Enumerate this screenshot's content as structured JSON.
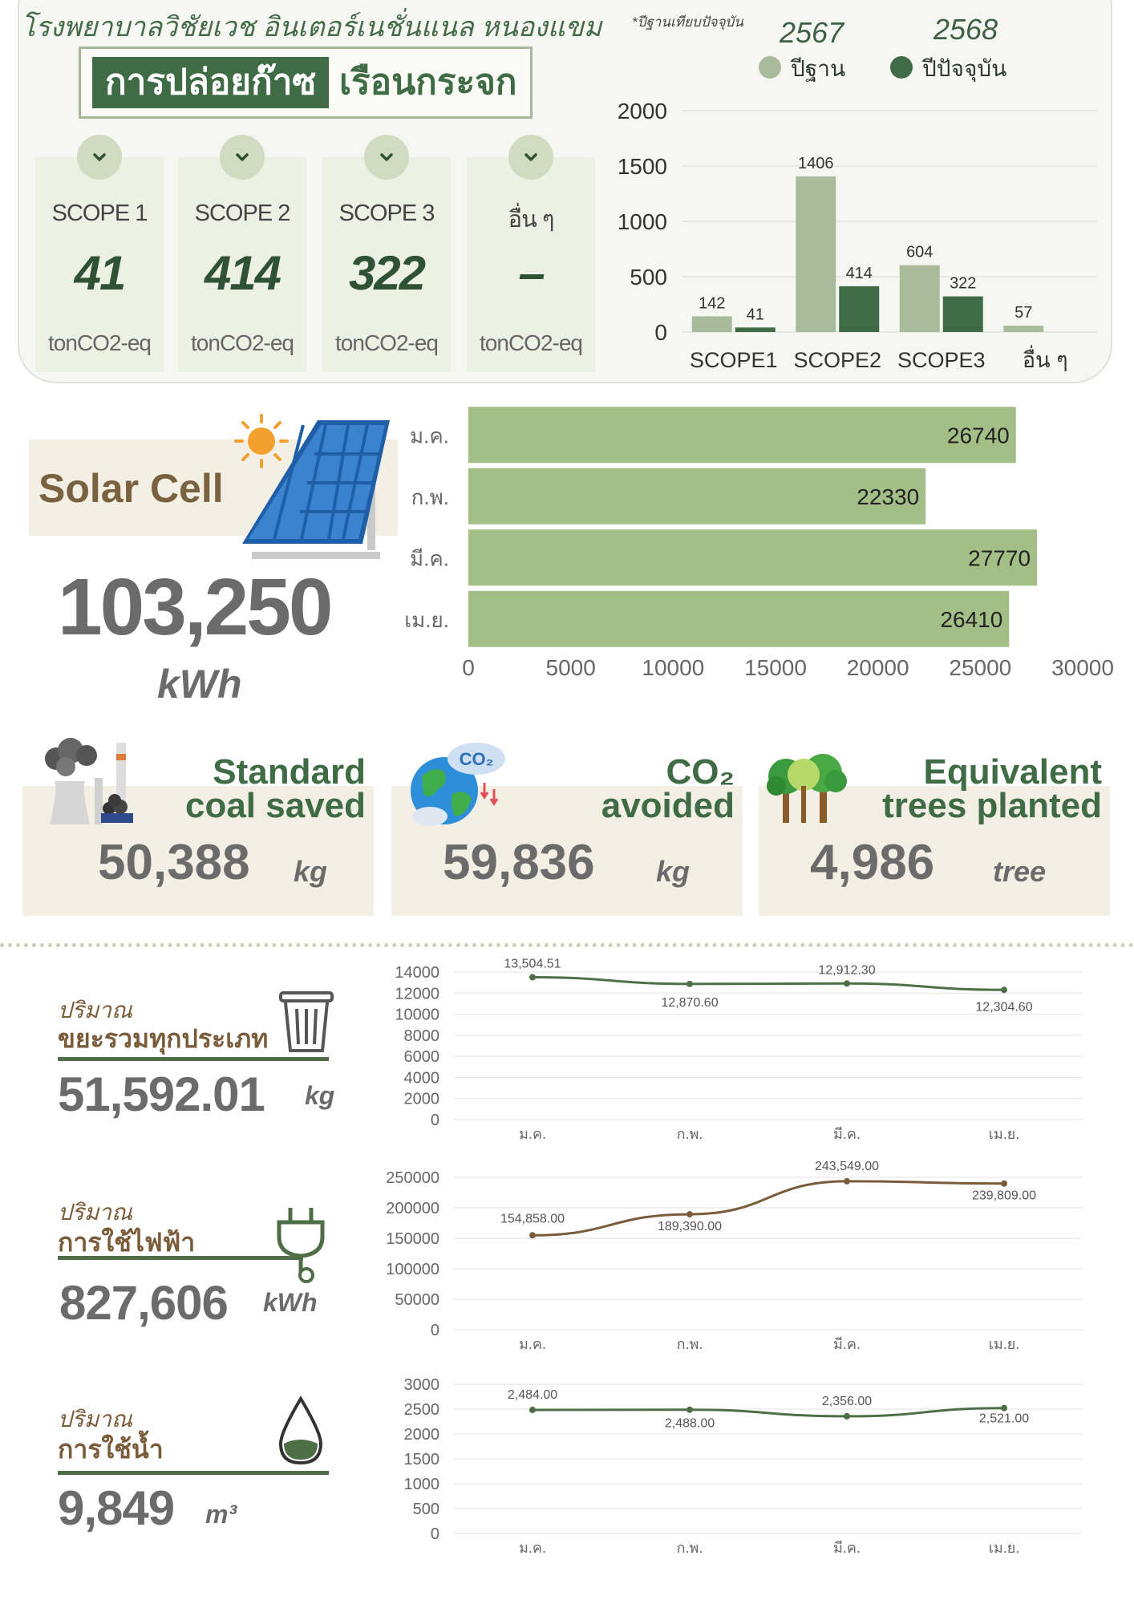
{
  "header": {
    "hospital_name": "โรงพยาบาลวิชัยเวช อินเตอร์เนชั่นแนล หนองแขม",
    "footnote": "*ปีฐานเทียบปัจจุบัน",
    "base_year": "2567",
    "current_year": "2568",
    "legend_base": "ปีฐาน",
    "legend_current": "ปีปัจจุบัน"
  },
  "ghg_title": {
    "part1": "การปล่อยก๊าซ",
    "part2": "เรือนกระจก"
  },
  "scopes": [
    {
      "name": "SCOPE 1",
      "value": "41",
      "unit": "tonCO2-eq"
    },
    {
      "name": "SCOPE 2",
      "value": "414",
      "unit": "tonCO2-eq"
    },
    {
      "name": "SCOPE 3",
      "value": "322",
      "unit": "tonCO2-eq"
    },
    {
      "name": "อื่น ๆ",
      "value": "–",
      "unit": "tonCO2-eq"
    }
  ],
  "solar": {
    "title": "Solar Cell",
    "total": "103,250",
    "unit": "kWh"
  },
  "stats": {
    "coal": {
      "title_line1": "Standard",
      "title_line2": "coal saved",
      "value": "50,388",
      "unit": "kg"
    },
    "co2": {
      "title_line1": "CO₂",
      "title_line2": "avoided",
      "value": "59,836",
      "unit": "kg"
    },
    "trees": {
      "title_line1": "Equivalent",
      "title_line2": "trees planted",
      "value": "4,986",
      "unit": "tree"
    }
  },
  "metrics": {
    "waste": {
      "prefix": "ปริมาณ",
      "label": "ขยะรวมทุกประเภท",
      "value": "51,592.01",
      "unit": "kg"
    },
    "electricity": {
      "prefix": "ปริมาณ",
      "label": "การใช้ไฟฟ้า",
      "value": "827,606",
      "unit": "kWh"
    },
    "water": {
      "prefix": "ปริมาณ",
      "label": "การใช้น้ำ",
      "value": "9,849",
      "unit": "m³"
    }
  },
  "colors": {
    "base_bar": "#a9bb9b",
    "current_bar": "#3f6b45",
    "solar_bar": "#a3bf87",
    "waste_line": "#4e6e46",
    "electric_line": "#7a5c3a",
    "water_line": "#4e6e46"
  },
  "chart_data": [
    {
      "type": "bar",
      "categories": [
        "SCOPE1",
        "SCOPE2",
        "SCOPE3",
        "อื่น ๆ"
      ],
      "series": [
        {
          "name": "ปีฐาน",
          "values": [
            142,
            1406,
            604,
            57
          ],
          "labels": [
            "142",
            "1406",
            "604",
            "57"
          ]
        },
        {
          "name": "ปีปัจจุบัน",
          "values": [
            41,
            414,
            322,
            null
          ],
          "labels": [
            "41",
            "414",
            "322",
            ""
          ]
        }
      ],
      "ylim": [
        0,
        2000
      ],
      "yticks": [
        "0",
        "500",
        "1000",
        "1500",
        "2000"
      ],
      "grid": true
    },
    {
      "type": "bar",
      "orientation": "horizontal",
      "categories": [
        "ม.ค.",
        "ก.พ.",
        "มี.ค.",
        "เม.ย."
      ],
      "values": [
        26740,
        22330,
        27770,
        26410
      ],
      "labels": [
        "26740",
        "22330",
        "27770",
        "26410"
      ],
      "xlim": [
        0,
        30000
      ],
      "xticks": [
        "0",
        "5000",
        "10000",
        "15000",
        "20000",
        "25000",
        "30000"
      ]
    },
    {
      "type": "line",
      "categories": [
        "ม.ค.",
        "ก.พ.",
        "มี.ค.",
        "เม.ย."
      ],
      "values": [
        13504.51,
        12870.6,
        12912.3,
        12304.6
      ],
      "labels": [
        "13,504.51",
        "12,870.60",
        "12,912.30",
        "12,304.60"
      ],
      "ylim": [
        0,
        14000
      ],
      "yticks": [
        "0",
        "2000",
        "4000",
        "6000",
        "8000",
        "10000",
        "12000",
        "14000"
      ],
      "grid": true
    },
    {
      "type": "line",
      "categories": [
        "ม.ค.",
        "ก.พ.",
        "มี.ค.",
        "เม.ย."
      ],
      "values": [
        154858.0,
        189390.0,
        243549.0,
        239809.0
      ],
      "labels": [
        "154,858.00",
        "189,390.00",
        "243,549.00",
        "239,809.00"
      ],
      "ylim": [
        0,
        250000
      ],
      "yticks": [
        "0",
        "50000",
        "100000",
        "150000",
        "200000",
        "250000"
      ],
      "grid": true
    },
    {
      "type": "line",
      "categories": [
        "ม.ค.",
        "ก.พ.",
        "มี.ค.",
        "เม.ย."
      ],
      "values": [
        2484.0,
        2488.0,
        2356.0,
        2521.0
      ],
      "labels": [
        "2,484.00",
        "2,488.00",
        "2,356.00",
        "2,521.00"
      ],
      "ylim": [
        0,
        3000
      ],
      "yticks": [
        "0",
        "500",
        "1000",
        "1500",
        "2000",
        "2500",
        "3000"
      ],
      "grid": true
    }
  ]
}
